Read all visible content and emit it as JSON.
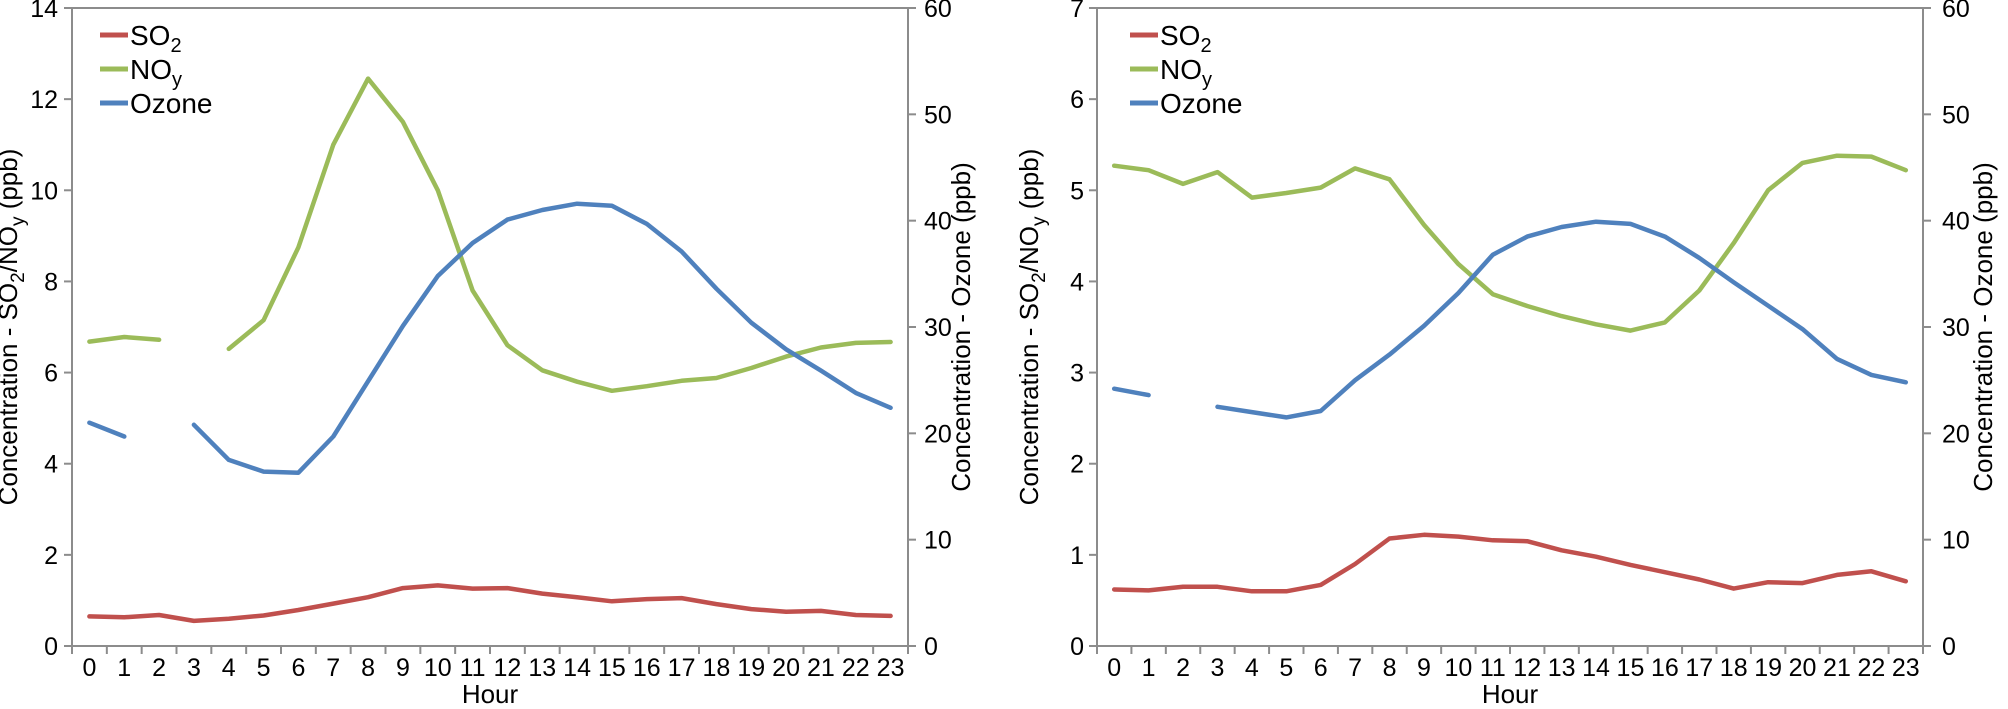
{
  "colors": {
    "so2": "#C0504D",
    "noy": "#9BBB59",
    "ozone": "#4F81BD",
    "axis": "#8C8C8C",
    "text": "#000000",
    "background": "#FFFFFF"
  },
  "chart_data": [
    {
      "type": "line",
      "title": "",
      "xlabel": "Hour",
      "categories": [
        0,
        1,
        2,
        3,
        4,
        5,
        6,
        7,
        8,
        9,
        10,
        11,
        12,
        13,
        14,
        15,
        16,
        17,
        18,
        19,
        20,
        21,
        22,
        23
      ],
      "y_left": {
        "label": "Concentration - SO2/NOy (ppb)",
        "label_parts": [
          {
            "t": "Concentration - SO"
          },
          {
            "t": "2",
            "sub": true
          },
          {
            "t": "/NO"
          },
          {
            "t": "y",
            "sub": true
          },
          {
            "t": " (ppb)"
          }
        ],
        "ticks": [
          0,
          2,
          4,
          6,
          8,
          10,
          12,
          14
        ],
        "lim": [
          0,
          14
        ]
      },
      "y_right": {
        "label": "Concentration - Ozone (ppb)",
        "label_parts": [
          {
            "t": "Concentration - Ozone (ppb)"
          }
        ],
        "ticks": [
          0,
          10,
          20,
          30,
          40,
          50,
          60
        ],
        "lim": [
          0,
          60
        ]
      },
      "legend_position": "top-left-inside",
      "grid": false,
      "series": [
        {
          "name": "SO2",
          "label_parts": [
            {
              "t": "SO"
            },
            {
              "t": "2",
              "sub": true
            }
          ],
          "axis": "left",
          "color_key": "so2",
          "values": [
            0.65,
            0.63,
            0.68,
            0.55,
            0.6,
            0.67,
            0.79,
            0.93,
            1.07,
            1.27,
            1.33,
            1.26,
            1.27,
            1.15,
            1.07,
            0.98,
            1.03,
            1.05,
            0.92,
            0.81,
            0.75,
            0.77,
            0.68,
            0.66
          ]
        },
        {
          "name": "NOy",
          "label_parts": [
            {
              "t": "NO"
            },
            {
              "t": "y",
              "sub": true
            }
          ],
          "axis": "left",
          "color_key": "noy",
          "values": [
            6.68,
            6.78,
            6.72,
            null,
            6.52,
            7.15,
            8.75,
            11.0,
            12.45,
            11.5,
            10.0,
            7.8,
            6.6,
            6.05,
            5.8,
            5.6,
            5.7,
            5.82,
            5.88,
            6.1,
            6.35,
            6.55,
            6.65,
            6.67
          ]
        },
        {
          "name": "Ozone",
          "label_parts": [
            {
              "t": "Ozone"
            }
          ],
          "axis": "right",
          "color_key": "ozone",
          "values": [
            21.0,
            19.7,
            null,
            20.8,
            17.5,
            16.4,
            16.3,
            19.7,
            24.9,
            30.1,
            34.8,
            37.9,
            40.1,
            41.0,
            41.6,
            41.4,
            39.7,
            37.1,
            33.6,
            30.4,
            27.9,
            25.9,
            23.8,
            22.4
          ]
        }
      ]
    },
    {
      "type": "line",
      "title": "",
      "xlabel": "Hour",
      "categories": [
        0,
        1,
        2,
        3,
        4,
        5,
        6,
        7,
        8,
        9,
        10,
        11,
        12,
        13,
        14,
        15,
        16,
        17,
        18,
        19,
        20,
        21,
        22,
        23
      ],
      "y_left": {
        "label": "Concentration - SO2/NOy (ppb)",
        "label_parts": [
          {
            "t": "Concentration - SO"
          },
          {
            "t": "2",
            "sub": true
          },
          {
            "t": "/NO"
          },
          {
            "t": "y",
            "sub": true
          },
          {
            "t": " (ppb)"
          }
        ],
        "ticks": [
          0,
          1,
          2,
          3,
          4,
          5,
          6,
          7
        ],
        "lim": [
          0,
          7
        ]
      },
      "y_right": {
        "label": "Concentration - Ozone (ppb)",
        "label_parts": [
          {
            "t": "Concentration - Ozone (ppb)"
          }
        ],
        "ticks": [
          0,
          10,
          20,
          30,
          40,
          50,
          60
        ],
        "lim": [
          0,
          60
        ]
      },
      "legend_position": "top-left-inside",
      "grid": false,
      "series": [
        {
          "name": "SO2",
          "label_parts": [
            {
              "t": "SO"
            },
            {
              "t": "2",
              "sub": true
            }
          ],
          "axis": "left",
          "color_key": "so2",
          "values": [
            0.62,
            0.61,
            0.65,
            0.65,
            0.6,
            0.6,
            0.67,
            0.9,
            1.18,
            1.22,
            1.2,
            1.16,
            1.15,
            1.05,
            0.98,
            0.89,
            0.81,
            0.73,
            0.63,
            0.7,
            0.69,
            0.78,
            0.82,
            0.71
          ]
        },
        {
          "name": "NOy",
          "label_parts": [
            {
              "t": "NO"
            },
            {
              "t": "y",
              "sub": true
            }
          ],
          "axis": "left",
          "color_key": "noy",
          "values": [
            5.27,
            5.22,
            5.07,
            5.2,
            4.92,
            4.97,
            5.03,
            5.24,
            5.12,
            4.62,
            4.19,
            3.86,
            3.73,
            3.62,
            3.53,
            3.46,
            3.55,
            3.9,
            4.42,
            5.0,
            5.3,
            5.38,
            5.37,
            5.22
          ]
        },
        {
          "name": "Ozone",
          "label_parts": [
            {
              "t": "Ozone"
            }
          ],
          "axis": "right",
          "color_key": "ozone",
          "values": [
            24.2,
            23.6,
            null,
            22.5,
            22.0,
            21.5,
            22.1,
            25.0,
            27.4,
            30.1,
            33.2,
            36.8,
            38.5,
            39.4,
            39.9,
            39.7,
            38.5,
            36.5,
            34.2,
            32.0,
            29.8,
            27.0,
            25.5,
            24.8
          ]
        }
      ]
    }
  ]
}
